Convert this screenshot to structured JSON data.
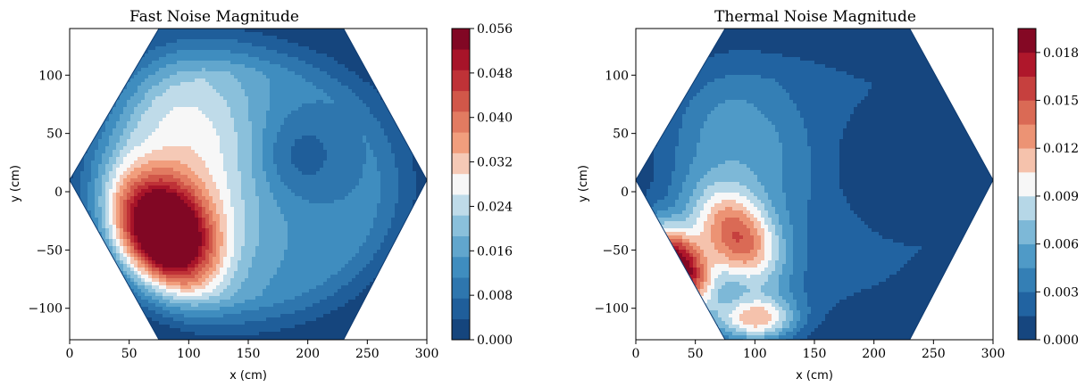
{
  "chart_data": [
    {
      "type": "heatmap",
      "subtype": "filled-contour",
      "title": "Fast Noise Magnitude",
      "xlabel": "x (cm)",
      "ylabel": "y (cm)",
      "xlim": [
        0,
        300
      ],
      "ylim": [
        -127,
        140
      ],
      "x_ticks": [
        0,
        50,
        100,
        150,
        200,
        250,
        300
      ],
      "y_ticks": [
        -100,
        -50,
        0,
        50,
        100
      ],
      "colorbar": {
        "range": [
          0,
          0.056
        ],
        "levels": 15,
        "tick_values": [
          0.0,
          0.008,
          0.016,
          0.024,
          0.032,
          0.04,
          0.048,
          0.056
        ],
        "tick_labels": [
          "0.000",
          "0.008",
          "0.016",
          "0.024",
          "0.032",
          "0.040",
          "0.048",
          "0.056"
        ]
      },
      "peaks": [
        {
          "x": 80,
          "y": -35,
          "value": 0.056,
          "spread": 26,
          "orientation_deg": -58,
          "aspect": 1.9
        },
        {
          "x": 105,
          "y": 40,
          "value": 0.016,
          "spread": 45,
          "orientation_deg": -70,
          "aspect": 2.4
        }
      ],
      "base_value": 0.012,
      "low_region": {
        "x": 190,
        "y": 30,
        "value": 0.002
      }
    },
    {
      "type": "heatmap",
      "subtype": "filled-contour",
      "title": "Thermal Noise Magnitude",
      "xlabel": "x (cm)",
      "ylabel": "y (cm)",
      "xlim": [
        0,
        300
      ],
      "ylim": [
        -127,
        140
      ],
      "x_ticks": [
        0,
        50,
        100,
        150,
        200,
        250,
        300
      ],
      "y_ticks": [
        -100,
        -50,
        0,
        50,
        100
      ],
      "colorbar": {
        "range": [
          0,
          0.0195
        ],
        "levels": 13,
        "tick_values": [
          0.0,
          0.003,
          0.006,
          0.009,
          0.012,
          0.015,
          0.018
        ],
        "tick_labels": [
          "0.000",
          "0.003",
          "0.006",
          "0.009",
          "0.012",
          "0.015",
          "0.018"
        ]
      },
      "peaks": [
        {
          "x": 35,
          "y": -65,
          "value": 0.0195,
          "spread": 16,
          "orientation_deg": -60,
          "aspect": 2.8
        },
        {
          "x": 85,
          "y": -40,
          "value": 0.0125,
          "spread": 22,
          "orientation_deg": -55,
          "aspect": 2.2
        },
        {
          "x": 100,
          "y": -110,
          "value": 0.0105,
          "spread": 14,
          "orientation_deg": 0,
          "aspect": 3.0
        },
        {
          "x": 90,
          "y": 40,
          "value": 0.004,
          "spread": 40,
          "orientation_deg": -60,
          "aspect": 2.0
        }
      ],
      "base_value": 0.0015,
      "low_region": {
        "x": 190,
        "y": 20,
        "value": 0.0005
      }
    }
  ]
}
